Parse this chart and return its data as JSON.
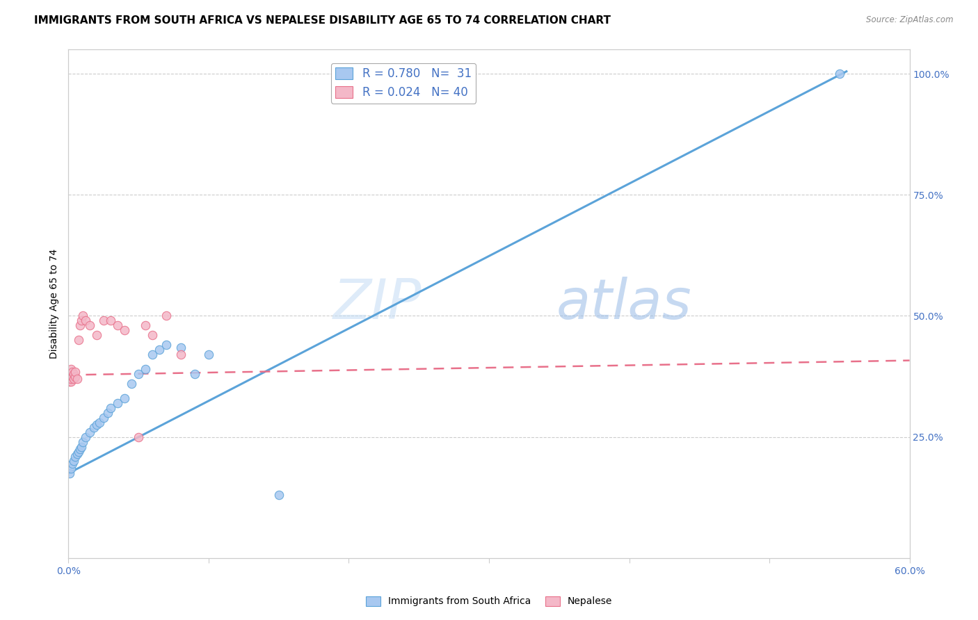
{
  "title": "IMMIGRANTS FROM SOUTH AFRICA VS NEPALESE DISABILITY AGE 65 TO 74 CORRELATION CHART",
  "source": "Source: ZipAtlas.com",
  "ylabel": "Disability Age 65 to 74",
  "ylabel_right_ticks": [
    "100.0%",
    "75.0%",
    "50.0%",
    "25.0%"
  ],
  "ylabel_right_vals": [
    1.0,
    0.75,
    0.5,
    0.25
  ],
  "blue_scatter_x": [
    0.001,
    0.002,
    0.003,
    0.004,
    0.005,
    0.006,
    0.007,
    0.008,
    0.009,
    0.01,
    0.012,
    0.015,
    0.018,
    0.02,
    0.022,
    0.025,
    0.028,
    0.03,
    0.035,
    0.04,
    0.045,
    0.05,
    0.055,
    0.06,
    0.065,
    0.07,
    0.08,
    0.09,
    0.1,
    0.15,
    0.55
  ],
  "blue_scatter_y": [
    0.175,
    0.185,
    0.195,
    0.2,
    0.21,
    0.215,
    0.22,
    0.225,
    0.23,
    0.24,
    0.25,
    0.26,
    0.27,
    0.275,
    0.28,
    0.29,
    0.3,
    0.31,
    0.32,
    0.33,
    0.36,
    0.38,
    0.39,
    0.42,
    0.43,
    0.44,
    0.435,
    0.38,
    0.42,
    0.13,
    1.0
  ],
  "pink_scatter_x": [
    0.0002,
    0.0003,
    0.0004,
    0.0005,
    0.0006,
    0.0007,
    0.0008,
    0.0009,
    0.001,
    0.001,
    0.0012,
    0.0014,
    0.0015,
    0.0016,
    0.0018,
    0.002,
    0.002,
    0.003,
    0.003,
    0.004,
    0.004,
    0.005,
    0.005,
    0.006,
    0.007,
    0.008,
    0.009,
    0.01,
    0.012,
    0.015,
    0.02,
    0.025,
    0.03,
    0.035,
    0.04,
    0.05,
    0.055,
    0.06,
    0.07,
    0.08
  ],
  "pink_scatter_y": [
    0.37,
    0.375,
    0.38,
    0.37,
    0.365,
    0.375,
    0.38,
    0.37,
    0.375,
    0.38,
    0.37,
    0.375,
    0.38,
    0.365,
    0.37,
    0.38,
    0.39,
    0.375,
    0.385,
    0.37,
    0.38,
    0.375,
    0.385,
    0.37,
    0.45,
    0.48,
    0.49,
    0.5,
    0.49,
    0.48,
    0.46,
    0.49,
    0.49,
    0.48,
    0.47,
    0.25,
    0.48,
    0.46,
    0.5,
    0.42
  ],
  "blue_line_x": [
    0.0,
    0.555
  ],
  "blue_line_y": [
    0.175,
    1.005
  ],
  "pink_line_x": [
    0.0,
    0.6
  ],
  "pink_line_y": [
    0.378,
    0.408
  ],
  "blue_scatter_color": "#a8c8f0",
  "blue_line_color": "#5ba3d9",
  "pink_scatter_color": "#f4b8c8",
  "pink_line_color": "#e8708a",
  "xlim": [
    0.0,
    0.6
  ],
  "ylim": [
    0.0,
    1.05
  ],
  "title_fontsize": 11,
  "axis_label_fontsize": 10,
  "tick_fontsize": 10
}
